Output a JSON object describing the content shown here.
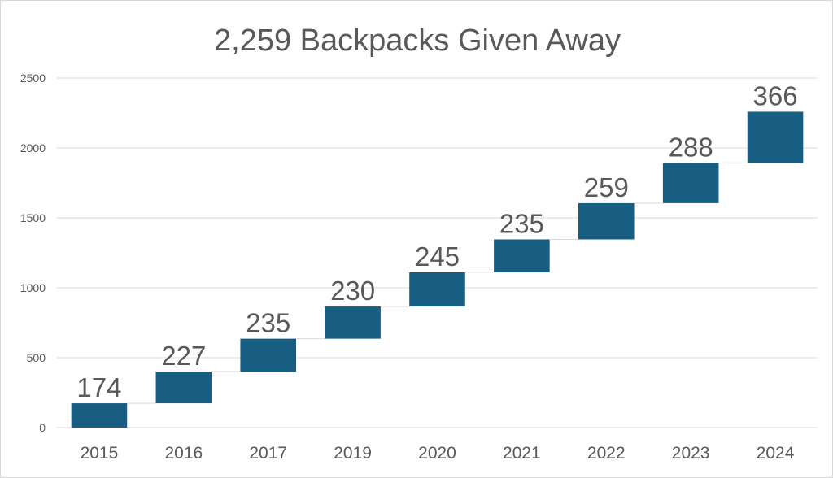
{
  "chart_data": {
    "type": "bar",
    "subtype": "waterfall",
    "title": "2,259 Backpacks Given Away",
    "xlabel": "",
    "ylabel": "",
    "categories": [
      "2015",
      "2016",
      "2017",
      "2019",
      "2020",
      "2021",
      "2022",
      "2023",
      "2024"
    ],
    "values": [
      174,
      227,
      235,
      230,
      245,
      235,
      259,
      288,
      366
    ],
    "data_labels": [
      "174",
      "227",
      "235",
      "230",
      "245",
      "235",
      "259",
      "288",
      "366"
    ],
    "ylim": [
      0,
      2500
    ],
    "yticks": [
      0,
      500,
      1000,
      1500,
      2000,
      2500
    ],
    "ytick_labels": [
      "0",
      "500",
      "1000",
      "1500",
      "2000",
      "2500"
    ],
    "grid": true,
    "legend": "none",
    "bar_color": "#175E82",
    "connector_color": "#d9d9d9",
    "grid_color": "#d9d9d9"
  }
}
